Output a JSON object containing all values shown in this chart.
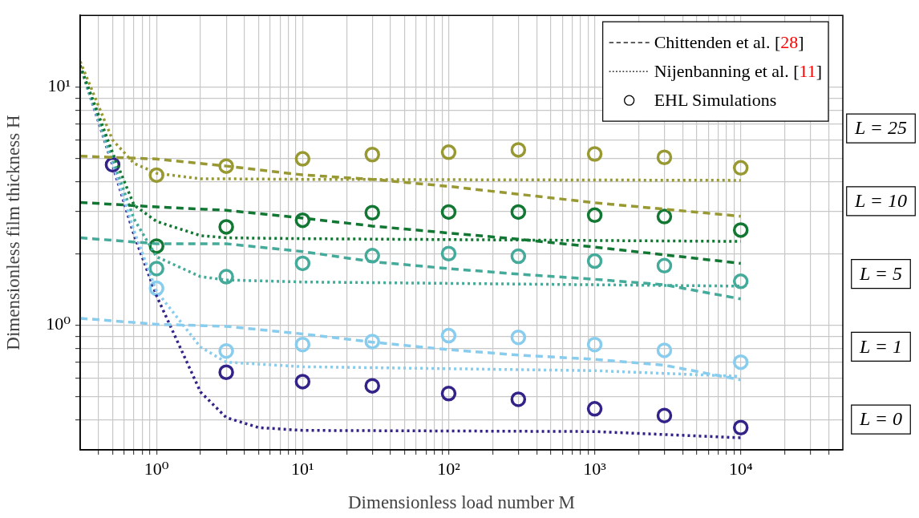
{
  "chart_data": {
    "type": "line",
    "xlabel": "Dimensionless load number M",
    "ylabel": "Dimensionless film thickness H",
    "log": "xy",
    "grid": true,
    "legend": "top right",
    "xlim": [
      0.3,
      50000
    ],
    "ylim": [
      0.3,
      20
    ],
    "xticks": [
      {
        "value": 0.4,
        "label": null
      },
      {
        "value": 0.5,
        "label": null
      },
      {
        "value": 0.6,
        "label": null
      },
      {
        "value": 0.7,
        "label": null
      },
      {
        "value": 0.8,
        "label": null
      },
      {
        "value": 0.9,
        "label": null
      },
      {
        "value": 1,
        "label": "10⁰"
      },
      {
        "value": 2,
        "label": null
      },
      {
        "value": 3,
        "label": null
      },
      {
        "value": 4,
        "label": null
      },
      {
        "value": 5,
        "label": null
      },
      {
        "value": 6,
        "label": null
      },
      {
        "value": 7,
        "label": null
      },
      {
        "value": 8,
        "label": null
      },
      {
        "value": 9,
        "label": null
      },
      {
        "value": 10,
        "label": "10¹"
      },
      {
        "value": 20,
        "label": null
      },
      {
        "value": 30,
        "label": null
      },
      {
        "value": 40,
        "label": null
      },
      {
        "value": 50,
        "label": null
      },
      {
        "value": 60,
        "label": null
      },
      {
        "value": 70,
        "label": null
      },
      {
        "value": 80,
        "label": null
      },
      {
        "value": 90,
        "label": null
      },
      {
        "value": 100,
        "label": "10²"
      },
      {
        "value": 200,
        "label": null
      },
      {
        "value": 300,
        "label": null
      },
      {
        "value": 400,
        "label": null
      },
      {
        "value": 500,
        "label": null
      },
      {
        "value": 600,
        "label": null
      },
      {
        "value": 700,
        "label": null
      },
      {
        "value": 800,
        "label": null
      },
      {
        "value": 900,
        "label": null
      },
      {
        "value": 1000,
        "label": "10³"
      },
      {
        "value": 2000,
        "label": null
      },
      {
        "value": 3000,
        "label": null
      },
      {
        "value": 4000,
        "label": null
      },
      {
        "value": 5000,
        "label": null
      },
      {
        "value": 6000,
        "label": null
      },
      {
        "value": 7000,
        "label": null
      },
      {
        "value": 8000,
        "label": null
      },
      {
        "value": 9000,
        "label": null
      },
      {
        "value": 10000,
        "label": "10⁴"
      },
      {
        "value": 20000,
        "label": null
      },
      {
        "value": 30000,
        "label": null
      },
      {
        "value": 40000,
        "label": null
      }
    ],
    "yticks": [
      {
        "value": 0.4,
        "label": null
      },
      {
        "value": 0.5,
        "label": null
      },
      {
        "value": 0.6,
        "label": null
      },
      {
        "value": 0.7,
        "label": null
      },
      {
        "value": 0.8,
        "label": null
      },
      {
        "value": 0.9,
        "label": null
      },
      {
        "value": 1,
        "label": "10⁰"
      },
      {
        "value": 2,
        "label": null
      },
      {
        "value": 3,
        "label": null
      },
      {
        "value": 4,
        "label": null
      },
      {
        "value": 5,
        "label": null
      },
      {
        "value": 6,
        "label": null
      },
      {
        "value": 7,
        "label": null
      },
      {
        "value": 8,
        "label": null
      },
      {
        "value": 9,
        "label": null
      },
      {
        "value": 10,
        "label": "10¹"
      }
    ],
    "annotations": [
      "L = 25",
      "L = 10",
      "L = 5",
      "L = 1",
      "L = 0"
    ],
    "series": [
      {
        "name": "Chittenden et al. [28]",
        "line_style": "dashed",
        "marker": "none",
        "color": "#000000"
      },
      {
        "name": "Nijenbanning et al. [11]",
        "line_style": "dotted",
        "marker": "none",
        "color": "#000000"
      },
      {
        "name": "EHL Simulations",
        "type": "scatter",
        "marker": "circle",
        "color": "#000000"
      },
      {
        "type": "line",
        "line_style": "dashed",
        "marker": "none",
        "color": "#999933",
        "x": [
          0.3,
          1,
          3,
          10,
          30,
          100,
          1000,
          10000
        ],
        "values": [
          5.13,
          4.99,
          4.66,
          4.28,
          4.1,
          3.83,
          3.27,
          2.87
        ]
      },
      {
        "type": "line",
        "line_style": "dashed",
        "marker": "none",
        "color": "#117733",
        "x": [
          0.3,
          1,
          3,
          10,
          30,
          100,
          300,
          1000,
          10000
        ],
        "values": [
          3.28,
          3.14,
          3.04,
          2.82,
          2.61,
          2.44,
          2.3,
          2.13,
          1.82
        ]
      },
      {
        "type": "line",
        "line_style": "dashed",
        "marker": "none",
        "color": "#44aa99",
        "x": [
          0.3,
          1,
          3,
          10,
          30,
          100,
          300,
          1000,
          3000,
          10000
        ],
        "values": [
          2.33,
          2.2,
          2.2,
          2.04,
          1.85,
          1.73,
          1.64,
          1.56,
          1.48,
          1.29
        ]
      },
      {
        "type": "line",
        "line_style": "dashed",
        "marker": "none",
        "color": "#88ccee",
        "x": [
          0.3,
          1,
          3,
          10,
          30,
          100,
          300,
          1000,
          3000,
          10000
        ],
        "values": [
          1.07,
          1.01,
          0.99,
          0.92,
          0.85,
          0.79,
          0.75,
          0.72,
          0.68,
          0.59
        ]
      },
      {
        "type": "line",
        "line_style": "dotted",
        "marker": "none",
        "color": "#999933",
        "x": [
          0.3,
          0.5,
          0.7,
          1,
          2,
          3,
          10,
          10000
        ],
        "values": [
          12.8,
          6.0,
          4.79,
          4.35,
          4.12,
          4.12,
          4.1,
          4.06
        ]
      },
      {
        "type": "line",
        "line_style": "dotted",
        "marker": "none",
        "color": "#117733",
        "x": [
          0.3,
          0.5,
          0.7,
          1,
          2,
          3,
          10,
          10000
        ],
        "values": [
          12.3,
          5.3,
          3.2,
          2.73,
          2.38,
          2.33,
          2.31,
          2.25
        ]
      },
      {
        "type": "line",
        "line_style": "dotted",
        "marker": "none",
        "color": "#44aa99",
        "x": [
          0.3,
          0.5,
          0.7,
          1,
          2,
          3,
          10,
          10000
        ],
        "values": [
          12.3,
          5.0,
          2.8,
          1.94,
          1.6,
          1.55,
          1.52,
          1.46
        ]
      },
      {
        "type": "line",
        "line_style": "dotted",
        "marker": "none",
        "color": "#88ccee",
        "x": [
          0.3,
          0.5,
          0.7,
          1,
          2,
          3,
          10,
          1000,
          10000
        ],
        "values": [
          12.3,
          4.8,
          2.5,
          1.39,
          0.81,
          0.7,
          0.67,
          0.645,
          0.61
        ]
      },
      {
        "type": "line",
        "line_style": "dotted",
        "marker": "none",
        "color": "#332288",
        "x": [
          0.3,
          0.5,
          0.7,
          1,
          2,
          3,
          5,
          10,
          100,
          1000,
          10000
        ],
        "values": [
          12.3,
          4.7,
          2.4,
          1.33,
          0.525,
          0.41,
          0.372,
          0.362,
          0.36,
          0.358,
          0.337
        ]
      },
      {
        "type": "scatter",
        "marker": "circle",
        "color": "#999933",
        "x": [
          1,
          3,
          10,
          30,
          100,
          300,
          1000,
          3000,
          10000
        ],
        "values": [
          4.27,
          4.66,
          5.0,
          5.21,
          5.33,
          5.45,
          5.24,
          5.07,
          4.58
        ]
      },
      {
        "type": "scatter",
        "marker": "circle",
        "color": "#117733",
        "x": [
          1,
          3,
          10,
          30,
          100,
          300,
          1000,
          3000,
          10000
        ],
        "values": [
          2.15,
          2.59,
          2.76,
          2.97,
          2.99,
          2.99,
          2.9,
          2.86,
          2.51
        ]
      },
      {
        "type": "scatter",
        "marker": "circle",
        "color": "#44aa99",
        "x": [
          1,
          3,
          10,
          30,
          100,
          300,
          1000,
          3000,
          10000
        ],
        "values": [
          1.73,
          1.6,
          1.82,
          1.96,
          2.0,
          1.95,
          1.86,
          1.78,
          1.53
        ]
      },
      {
        "type": "scatter",
        "marker": "circle",
        "color": "#88ccee",
        "x": [
          1,
          3,
          10,
          30,
          100,
          300,
          1000,
          3000,
          10000
        ],
        "values": [
          1.43,
          0.78,
          0.83,
          0.855,
          0.905,
          0.89,
          0.83,
          0.785,
          0.7
        ]
      },
      {
        "type": "scatter",
        "marker": "circle",
        "color": "#332288",
        "x": [
          0.5,
          3,
          10,
          30,
          100,
          300,
          1000,
          3000,
          10000
        ],
        "values": [
          4.72,
          0.635,
          0.58,
          0.557,
          0.517,
          0.489,
          0.446,
          0.418,
          0.372
        ]
      }
    ]
  }
}
